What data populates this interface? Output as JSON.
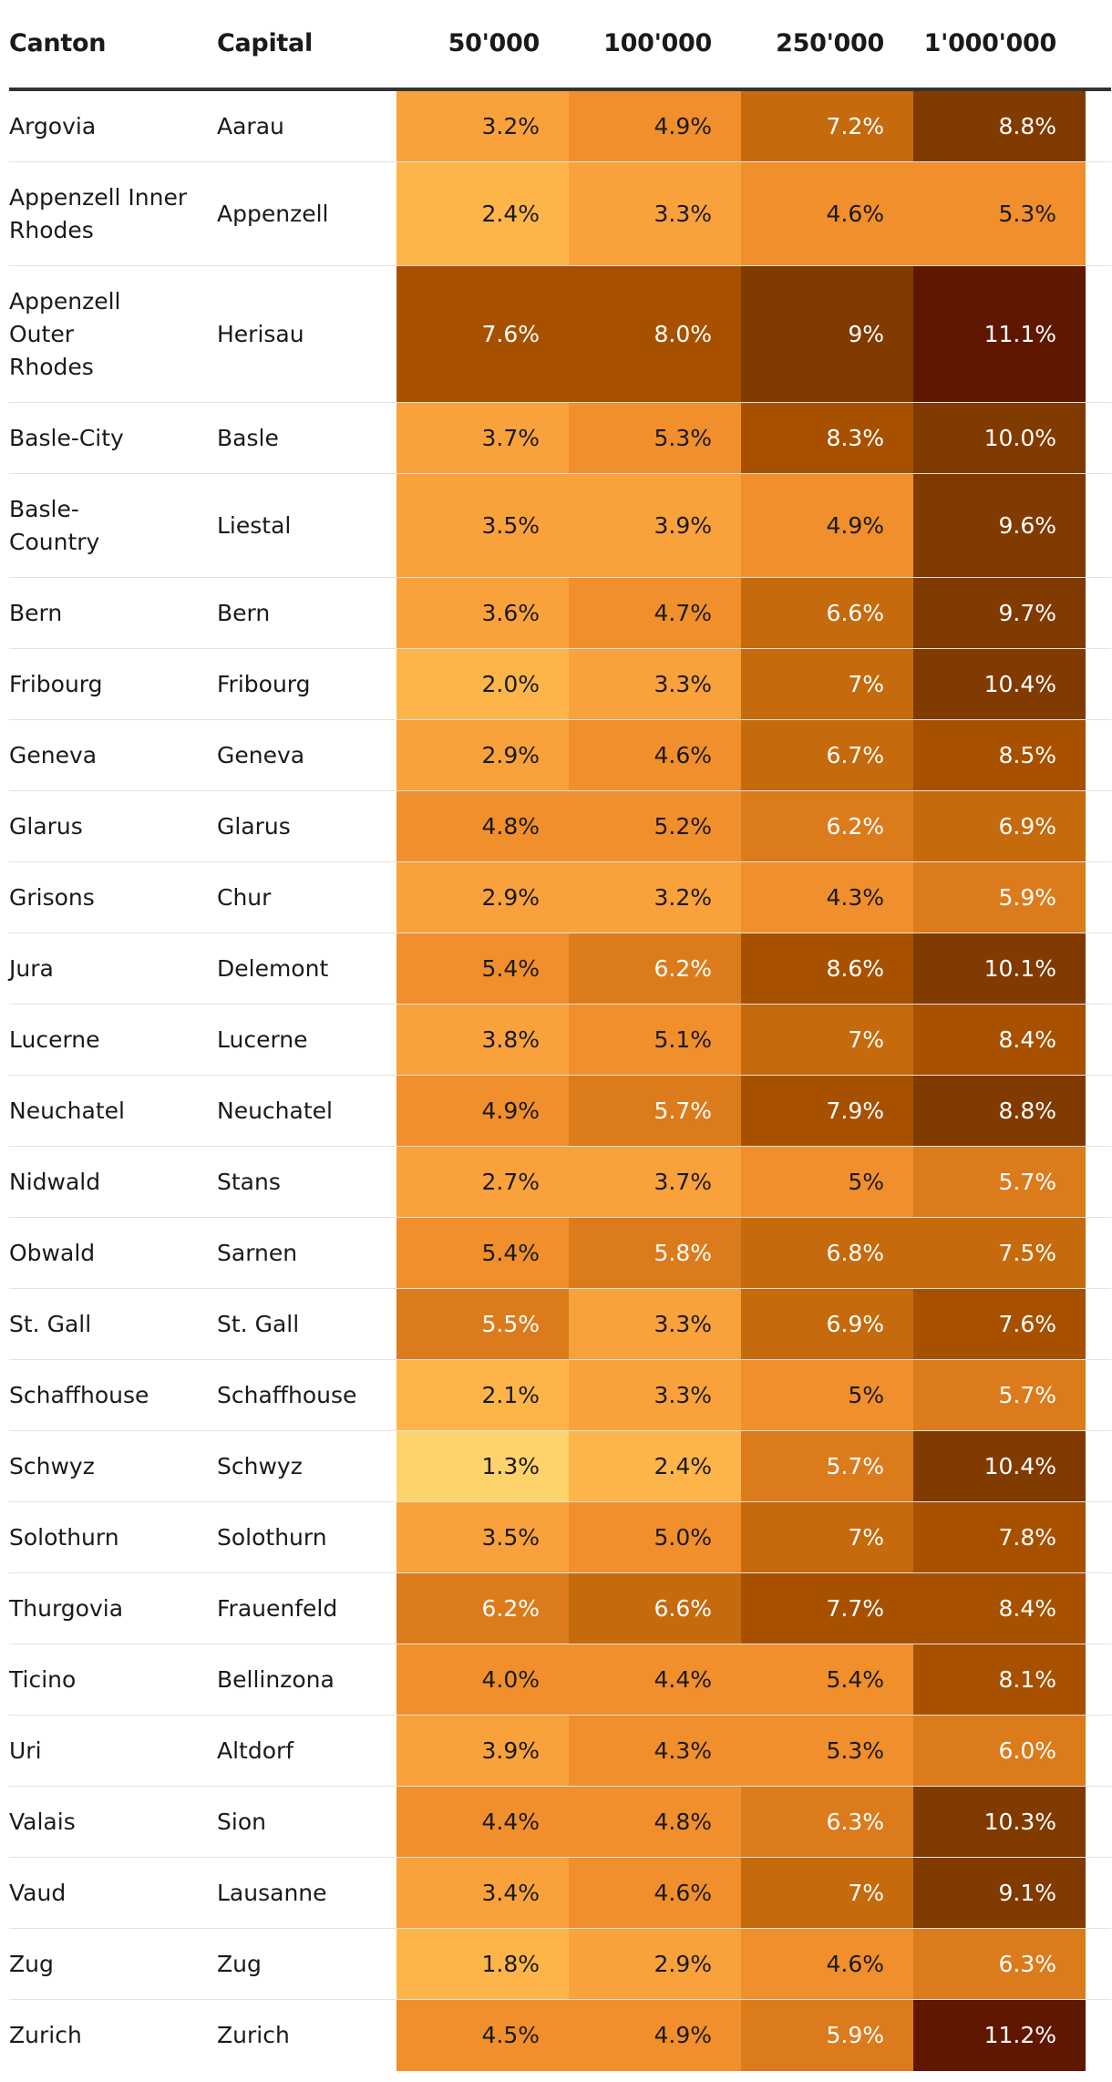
{
  "chart_data": {
    "type": "table",
    "columns": [
      "Canton",
      "Capital",
      "50'000",
      "100'000",
      "250'000",
      "1'000'000"
    ],
    "rows": [
      {
        "canton": "Argovia",
        "capital": "Aarau",
        "values": [
          "3.2%",
          "4.9%",
          "7.2%",
          "8.8%"
        ]
      },
      {
        "canton": "Appenzell Inner Rhodes",
        "capital": "Appenzell",
        "values": [
          "2.4%",
          "3.3%",
          "4.6%",
          "5.3%"
        ]
      },
      {
        "canton": "Appenzell Outer Rhodes",
        "capital": "Herisau",
        "values": [
          "7.6%",
          "8.0%",
          "9%",
          "11.1%"
        ]
      },
      {
        "canton": "Basle-City",
        "capital": "Basle",
        "values": [
          "3.7%",
          "5.3%",
          "8.3%",
          "10.0%"
        ]
      },
      {
        "canton": "Basle-Country",
        "capital": "Liestal",
        "values": [
          "3.5%",
          "3.9%",
          "4.9%",
          "9.6%"
        ]
      },
      {
        "canton": "Bern",
        "capital": "Bern",
        "values": [
          "3.6%",
          "4.7%",
          "6.6%",
          "9.7%"
        ]
      },
      {
        "canton": "Fribourg",
        "capital": "Fribourg",
        "values": [
          "2.0%",
          "3.3%",
          "7%",
          "10.4%"
        ]
      },
      {
        "canton": "Geneva",
        "capital": "Geneva",
        "values": [
          "2.9%",
          "4.6%",
          "6.7%",
          "8.5%"
        ]
      },
      {
        "canton": "Glarus",
        "capital": "Glarus",
        "values": [
          "4.8%",
          "5.2%",
          "6.2%",
          "6.9%"
        ]
      },
      {
        "canton": "Grisons",
        "capital": "Chur",
        "values": [
          "2.9%",
          "3.2%",
          "4.3%",
          "5.9%"
        ]
      },
      {
        "canton": "Jura",
        "capital": "Delemont",
        "values": [
          "5.4%",
          "6.2%",
          "8.6%",
          "10.1%"
        ]
      },
      {
        "canton": "Lucerne",
        "capital": "Lucerne",
        "values": [
          "3.8%",
          "5.1%",
          "7%",
          "8.4%"
        ]
      },
      {
        "canton": "Neuchatel",
        "capital": "Neuchatel",
        "values": [
          "4.9%",
          "5.7%",
          "7.9%",
          "8.8%"
        ]
      },
      {
        "canton": "Nidwald",
        "capital": "Stans",
        "values": [
          "2.7%",
          "3.7%",
          "5%",
          "5.7%"
        ]
      },
      {
        "canton": "Obwald",
        "capital": "Sarnen",
        "values": [
          "5.4%",
          "5.8%",
          "6.8%",
          "7.5%"
        ]
      },
      {
        "canton": "St. Gall",
        "capital": "St. Gall",
        "values": [
          "5.5%",
          "3.3%",
          "6.9%",
          "7.6%"
        ]
      },
      {
        "canton": "Schaffhouse",
        "capital": "Schaffhouse",
        "values": [
          "2.1%",
          "3.3%",
          "5%",
          "5.7%"
        ]
      },
      {
        "canton": "Schwyz",
        "capital": "Schwyz",
        "values": [
          "1.3%",
          "2.4%",
          "5.7%",
          "10.4%"
        ]
      },
      {
        "canton": "Solothurn",
        "capital": "Solothurn",
        "values": [
          "3.5%",
          "5.0%",
          "7%",
          "7.8%"
        ]
      },
      {
        "canton": "Thurgovia",
        "capital": "Frauenfeld",
        "values": [
          "6.2%",
          "6.6%",
          "7.7%",
          "8.4%"
        ]
      },
      {
        "canton": "Ticino",
        "capital": "Bellinzona",
        "values": [
          "4.0%",
          "4.4%",
          "5.4%",
          "8.1%"
        ]
      },
      {
        "canton": "Uri",
        "capital": "Altdorf",
        "values": [
          "3.9%",
          "4.3%",
          "5.3%",
          "6.0%"
        ]
      },
      {
        "canton": "Valais",
        "capital": "Sion",
        "values": [
          "4.4%",
          "4.8%",
          "6.3%",
          "10.3%"
        ]
      },
      {
        "canton": "Vaud",
        "capital": "Lausanne",
        "values": [
          "3.4%",
          "4.6%",
          "7%",
          "9.1%"
        ]
      },
      {
        "canton": "Zug",
        "capital": "Zug",
        "values": [
          "1.8%",
          "2.9%",
          "4.6%",
          "6.3%"
        ]
      },
      {
        "canton": "Zurich",
        "capital": "Zurich",
        "values": [
          "4.5%",
          "4.9%",
          "5.9%",
          "11.2%"
        ]
      }
    ],
    "color_scale": {
      "stops": [
        "#ffd36b",
        "#fdb54a",
        "#f9a23c",
        "#f08f2c",
        "#dc7b1c",
        "#c56a0d",
        "#a75100",
        "#813a00",
        "#5f1700"
      ],
      "light_text": "#ffffff",
      "dark_text": "#1a1a1a"
    }
  }
}
